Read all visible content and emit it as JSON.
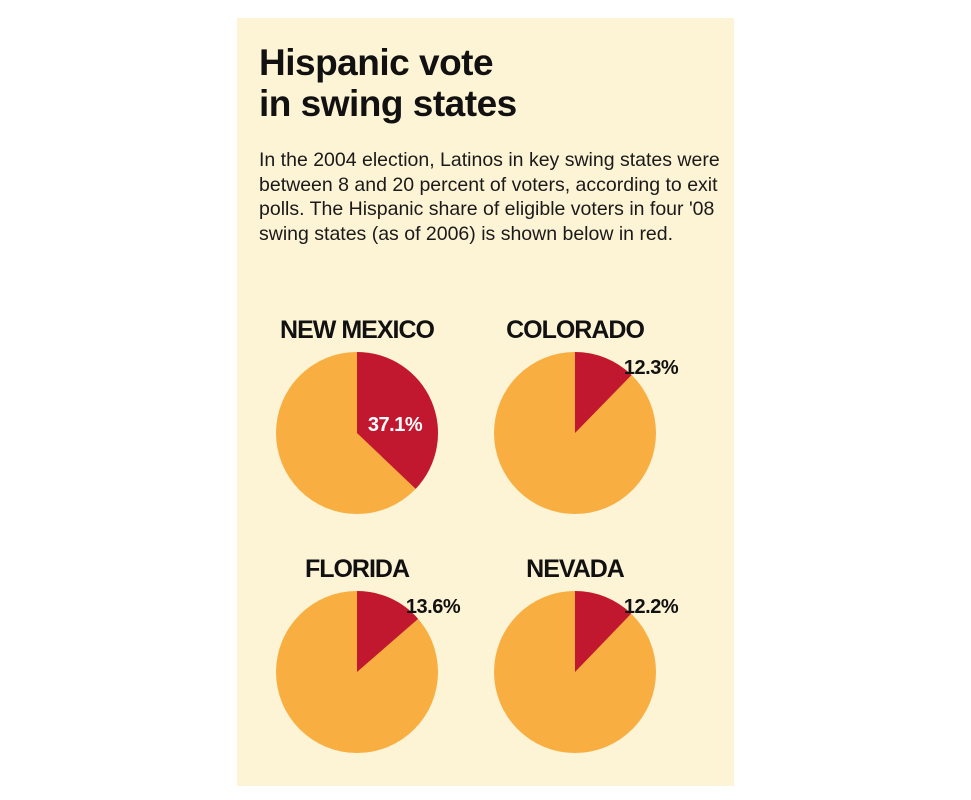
{
  "title_lines": [
    "Hispanic vote",
    "in swing states"
  ],
  "subtitle": "In the 2004 election, Latinos in key swing states were between 8 and 20 percent of voters, according to exit polls. The Hispanic share of eligible voters in four '08 swing states (as of 2006) is shown below in red.",
  "colors": {
    "hispanic": "#c1182f",
    "other": "#f8ae40",
    "background": "#fdf3d5"
  },
  "chart_data": [
    {
      "type": "pie",
      "title": "NEW MEXICO",
      "values": [
        37.1,
        62.9
      ],
      "label": "37.1%",
      "label_position": "inside"
    },
    {
      "type": "pie",
      "title": "COLORADO",
      "values": [
        12.3,
        87.7
      ],
      "label": "12.3%",
      "label_position": "outside"
    },
    {
      "type": "pie",
      "title": "FLORIDA",
      "values": [
        13.6,
        86.4
      ],
      "label": "13.6%",
      "label_position": "outside"
    },
    {
      "type": "pie",
      "title": "NEVADA",
      "values": [
        12.2,
        87.8
      ],
      "label": "12.2%",
      "label_position": "outside"
    }
  ]
}
